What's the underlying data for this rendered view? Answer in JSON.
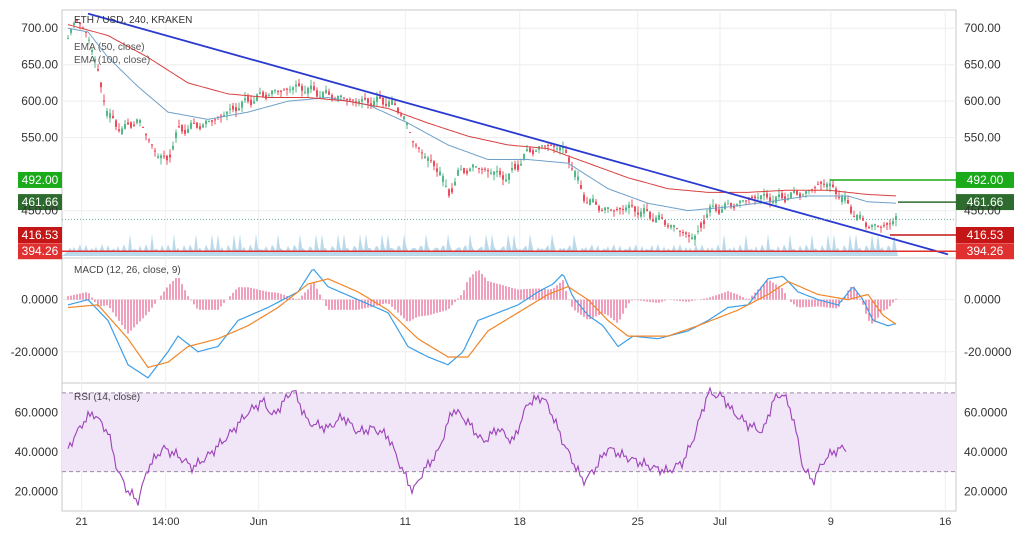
{
  "header": {
    "symbol": "ETH / USD, 240, KRAKEN",
    "legend": [
      "EMA (50, close)",
      "EMA (100, close)"
    ]
  },
  "price_axis": {
    "ticks": [
      "700.00",
      "650.00",
      "600.00",
      "550.00",
      "450.00"
    ],
    "tick_values": [
      700,
      650,
      600,
      550,
      450
    ]
  },
  "price_labels": [
    {
      "text": "492.00",
      "value": 492,
      "color": "#1aaa1a"
    },
    {
      "text": "461.66",
      "value": 461.66,
      "color": "#2e6b2e"
    },
    {
      "text": "416.53",
      "value": 416.53,
      "color": "#c41616"
    },
    {
      "text": "394.26",
      "value": 394.26,
      "color": "#e03030"
    }
  ],
  "macd": {
    "title": "MACD (12, 26, close, 9)",
    "ticks": [
      "0.0000",
      "-20.0000"
    ],
    "tick_values": [
      0,
      -20
    ]
  },
  "rsi": {
    "title": "RSI (14, close)",
    "ticks": [
      "60.0000",
      "40.0000",
      "20.0000"
    ],
    "tick_values": [
      60,
      40,
      20
    ],
    "band": [
      30,
      70
    ]
  },
  "time_axis": {
    "labels": [
      "21",
      "14:00",
      "Jun",
      "11",
      "18",
      "25",
      "Jul",
      "9",
      "16"
    ],
    "positions": [
      0.022,
      0.116,
      0.22,
      0.384,
      0.512,
      0.644,
      0.736,
      0.86,
      0.988
    ]
  },
  "chart_data": {
    "type": "candlestick",
    "series": [
      {
        "name": "ETH / USD",
        "anchors": [
          [
            0,
            690
          ],
          [
            10,
            712
          ],
          [
            20,
            690
          ],
          [
            30,
            640
          ],
          [
            40,
            580
          ],
          [
            55,
            560
          ],
          [
            70,
            575
          ],
          [
            90,
            525
          ],
          [
            100,
            520
          ],
          [
            110,
            560
          ],
          [
            140,
            570
          ],
          [
            160,
            585
          ],
          [
            180,
            600
          ],
          [
            200,
            610
          ],
          [
            230,
            620
          ],
          [
            260,
            608
          ],
          [
            290,
            600
          ],
          [
            320,
            600
          ],
          [
            335,
            582
          ],
          [
            345,
            545
          ],
          [
            360,
            520
          ],
          [
            372,
            505
          ],
          [
            380,
            470
          ],
          [
            390,
            500
          ],
          [
            405,
            510
          ],
          [
            420,
            505
          ],
          [
            440,
            495
          ],
          [
            460,
            530
          ],
          [
            480,
            540
          ],
          [
            495,
            535
          ],
          [
            505,
            510
          ],
          [
            515,
            470
          ],
          [
            530,
            455
          ],
          [
            545,
            450
          ],
          [
            560,
            455
          ],
          [
            580,
            445
          ],
          [
            600,
            432
          ],
          [
            615,
            420
          ],
          [
            628,
            412
          ],
          [
            640,
            450
          ],
          [
            660,
            455
          ],
          [
            690,
            470
          ],
          [
            710,
            465
          ],
          [
            720,
            470
          ],
          [
            740,
            475
          ],
          [
            755,
            490
          ],
          [
            770,
            475
          ],
          [
            790,
            440
          ],
          [
            800,
            430
          ],
          [
            815,
            428
          ],
          [
            830,
            440
          ]
        ]
      },
      {
        "name": "EMA (50, close)",
        "anchors": [
          [
            0,
            700
          ],
          [
            20,
            695
          ],
          [
            40,
            660
          ],
          [
            70,
            620
          ],
          [
            100,
            585
          ],
          [
            140,
            575
          ],
          [
            180,
            585
          ],
          [
            220,
            600
          ],
          [
            260,
            605
          ],
          [
            300,
            595
          ],
          [
            340,
            570
          ],
          [
            380,
            540
          ],
          [
            420,
            520
          ],
          [
            460,
            520
          ],
          [
            500,
            515
          ],
          [
            540,
            480
          ],
          [
            580,
            460
          ],
          [
            620,
            450
          ],
          [
            660,
            455
          ],
          [
            700,
            462
          ],
          [
            740,
            470
          ],
          [
            780,
            470
          ],
          [
            800,
            462
          ],
          [
            830,
            460
          ]
        ]
      },
      {
        "name": "EMA (100, close)",
        "anchors": [
          [
            0,
            705
          ],
          [
            40,
            690
          ],
          [
            80,
            660
          ],
          [
            120,
            625
          ],
          [
            160,
            610
          ],
          [
            200,
            605
          ],
          [
            240,
            605
          ],
          [
            280,
            600
          ],
          [
            320,
            590
          ],
          [
            360,
            570
          ],
          [
            400,
            552
          ],
          [
            440,
            540
          ],
          [
            480,
            535
          ],
          [
            520,
            515
          ],
          [
            560,
            495
          ],
          [
            600,
            480
          ],
          [
            640,
            475
          ],
          [
            680,
            475
          ],
          [
            720,
            478
          ],
          [
            760,
            478
          ],
          [
            800,
            472
          ],
          [
            830,
            470
          ]
        ]
      },
      {
        "name": "trendline",
        "anchors": [
          [
            20,
            720
          ],
          [
            880,
            390
          ]
        ]
      },
      {
        "name": "MACD",
        "anchors": [
          [
            0,
            -2
          ],
          [
            20,
            0
          ],
          [
            40,
            -8
          ],
          [
            60,
            -25
          ],
          [
            80,
            -30
          ],
          [
            100,
            -20
          ],
          [
            110,
            -14
          ],
          [
            130,
            -20
          ],
          [
            150,
            -18
          ],
          [
            170,
            -8
          ],
          [
            200,
            -3
          ],
          [
            230,
            3
          ],
          [
            245,
            12
          ],
          [
            260,
            5
          ],
          [
            290,
            0
          ],
          [
            320,
            -5
          ],
          [
            340,
            -18
          ],
          [
            360,
            -22
          ],
          [
            380,
            -25
          ],
          [
            395,
            -20
          ],
          [
            410,
            -8
          ],
          [
            430,
            -5
          ],
          [
            450,
            -2
          ],
          [
            470,
            3
          ],
          [
            485,
            6
          ],
          [
            495,
            10
          ],
          [
            505,
            1
          ],
          [
            520,
            -6
          ],
          [
            535,
            -10
          ],
          [
            550,
            -18
          ],
          [
            565,
            -14
          ],
          [
            590,
            -15
          ],
          [
            620,
            -12
          ],
          [
            640,
            -8
          ],
          [
            660,
            -3
          ],
          [
            680,
            -2
          ],
          [
            700,
            8
          ],
          [
            715,
            9
          ],
          [
            730,
            3
          ],
          [
            750,
            0
          ],
          [
            770,
            -2
          ],
          [
            785,
            5
          ],
          [
            795,
            0
          ],
          [
            805,
            -8
          ],
          [
            820,
            -10
          ],
          [
            830,
            -9
          ]
        ]
      },
      {
        "name": "Signal",
        "anchors": [
          [
            0,
            -3
          ],
          [
            30,
            -2
          ],
          [
            60,
            -15
          ],
          [
            80,
            -26
          ],
          [
            100,
            -24
          ],
          [
            120,
            -18
          ],
          [
            150,
            -15
          ],
          [
            180,
            -10
          ],
          [
            210,
            -3
          ],
          [
            240,
            6
          ],
          [
            260,
            8
          ],
          [
            290,
            3
          ],
          [
            320,
            -4
          ],
          [
            350,
            -15
          ],
          [
            380,
            -22
          ],
          [
            400,
            -22
          ],
          [
            420,
            -12
          ],
          [
            450,
            -5
          ],
          [
            480,
            2
          ],
          [
            500,
            5
          ],
          [
            520,
            0
          ],
          [
            540,
            -8
          ],
          [
            560,
            -14
          ],
          [
            600,
            -14
          ],
          [
            630,
            -10
          ],
          [
            670,
            -4
          ],
          [
            700,
            2
          ],
          [
            720,
            7
          ],
          [
            750,
            2
          ],
          [
            780,
            0
          ],
          [
            800,
            2
          ],
          [
            815,
            -6
          ],
          [
            830,
            -10
          ]
        ]
      },
      {
        "name": "RSI",
        "anchors": [
          [
            0,
            42
          ],
          [
            15,
            55
          ],
          [
            25,
            60
          ],
          [
            40,
            50
          ],
          [
            50,
            30
          ],
          [
            60,
            20
          ],
          [
            70,
            15
          ],
          [
            80,
            32
          ],
          [
            95,
            42
          ],
          [
            110,
            38
          ],
          [
            125,
            32
          ],
          [
            140,
            38
          ],
          [
            160,
            48
          ],
          [
            180,
            60
          ],
          [
            195,
            66
          ],
          [
            205,
            58
          ],
          [
            215,
            65
          ],
          [
            225,
            72
          ],
          [
            240,
            55
          ],
          [
            260,
            52
          ],
          [
            275,
            58
          ],
          [
            290,
            50
          ],
          [
            305,
            52
          ],
          [
            320,
            48
          ],
          [
            335,
            30
          ],
          [
            345,
            20
          ],
          [
            355,
            30
          ],
          [
            370,
            40
          ],
          [
            385,
            62
          ],
          [
            400,
            55
          ],
          [
            415,
            45
          ],
          [
            430,
            52
          ],
          [
            445,
            45
          ],
          [
            460,
            65
          ],
          [
            475,
            68
          ],
          [
            485,
            58
          ],
          [
            495,
            45
          ],
          [
            505,
            35
          ],
          [
            515,
            25
          ],
          [
            525,
            30
          ],
          [
            540,
            42
          ],
          [
            555,
            38
          ],
          [
            570,
            35
          ],
          [
            585,
            32
          ],
          [
            600,
            30
          ],
          [
            615,
            35
          ],
          [
            625,
            46
          ],
          [
            640,
            70
          ],
          [
            655,
            68
          ],
          [
            665,
            60
          ],
          [
            680,
            54
          ],
          [
            695,
            50
          ],
          [
            705,
            66
          ],
          [
            715,
            70
          ],
          [
            725,
            58
          ],
          [
            735,
            32
          ],
          [
            745,
            25
          ],
          [
            755,
            35
          ],
          [
            765,
            40
          ],
          [
            775,
            42
          ]
        ]
      }
    ],
    "y_range_price": [
      385,
      725
    ],
    "y_range_macd": [
      -32,
      16
    ],
    "y_range_rsi": [
      10,
      75
    ],
    "grid": true
  }
}
